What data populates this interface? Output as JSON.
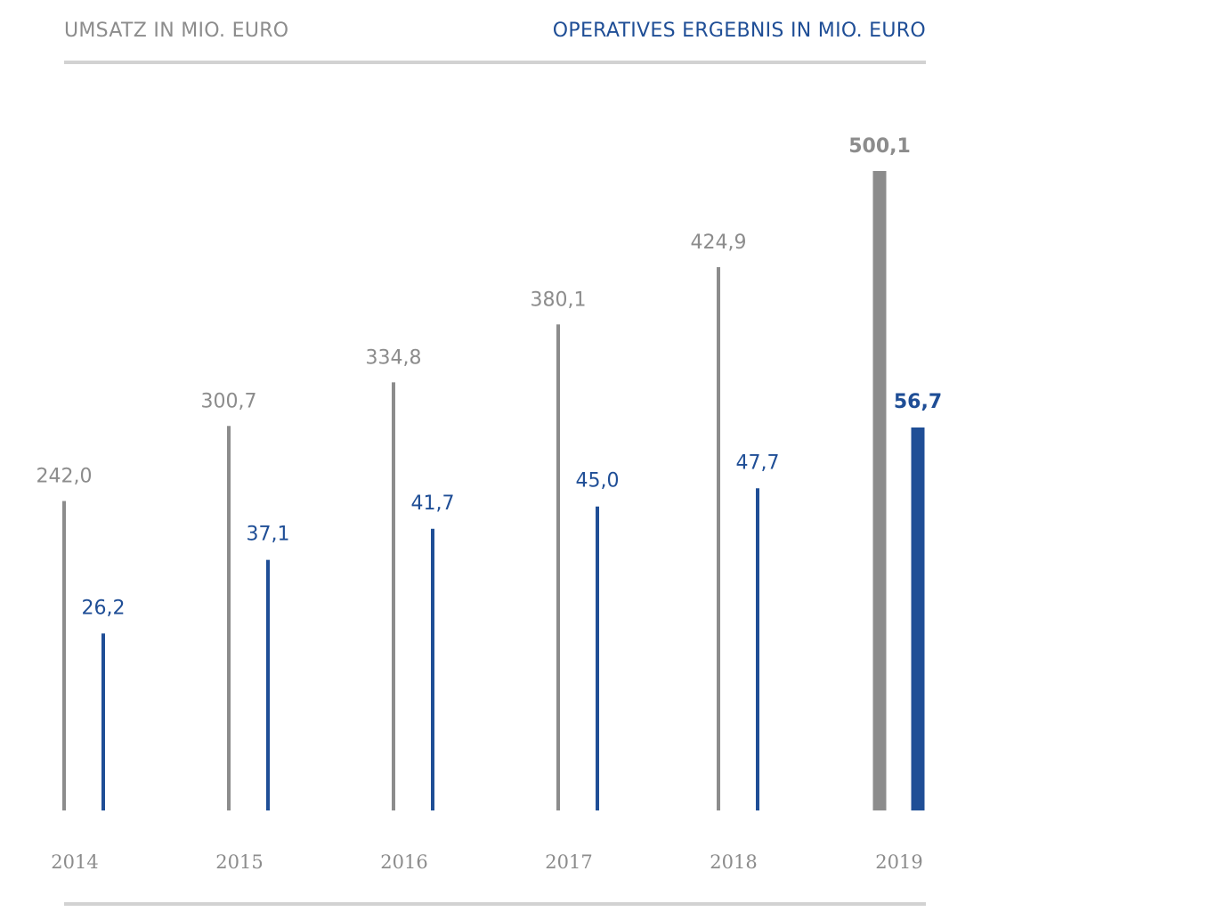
{
  "header": {
    "left_title": "UMSATZ IN MIO. EURO",
    "right_title": "OPERATIVES ERGEBNIS IN MIO. EURO"
  },
  "colors": {
    "revenue": "#8c8c8c",
    "result": "#1f4e96",
    "year_label": "#8c8c8c",
    "rule": "#d2d2d2"
  },
  "chart_data": {
    "type": "bar",
    "categories": [
      "2014",
      "2015",
      "2016",
      "2017",
      "2018",
      "2019"
    ],
    "series": [
      {
        "name": "UMSATZ IN MIO. EURO",
        "values": [
          242.0,
          300.7,
          334.8,
          380.1,
          424.9,
          500.1
        ],
        "labels": [
          "242,0",
          "300,7",
          "334,8",
          "380,1",
          "424,9",
          "500,1"
        ]
      },
      {
        "name": "OPERATIVES ERGEBNIS IN MIO. EURO",
        "values": [
          26.2,
          37.1,
          41.7,
          45.0,
          47.7,
          56.7
        ],
        "labels": [
          "26,2",
          "37,1",
          "41,7",
          "45,0",
          "47,7",
          "56,7"
        ]
      }
    ],
    "highlight_category": "2019",
    "grid": false,
    "legend_position": "top"
  }
}
